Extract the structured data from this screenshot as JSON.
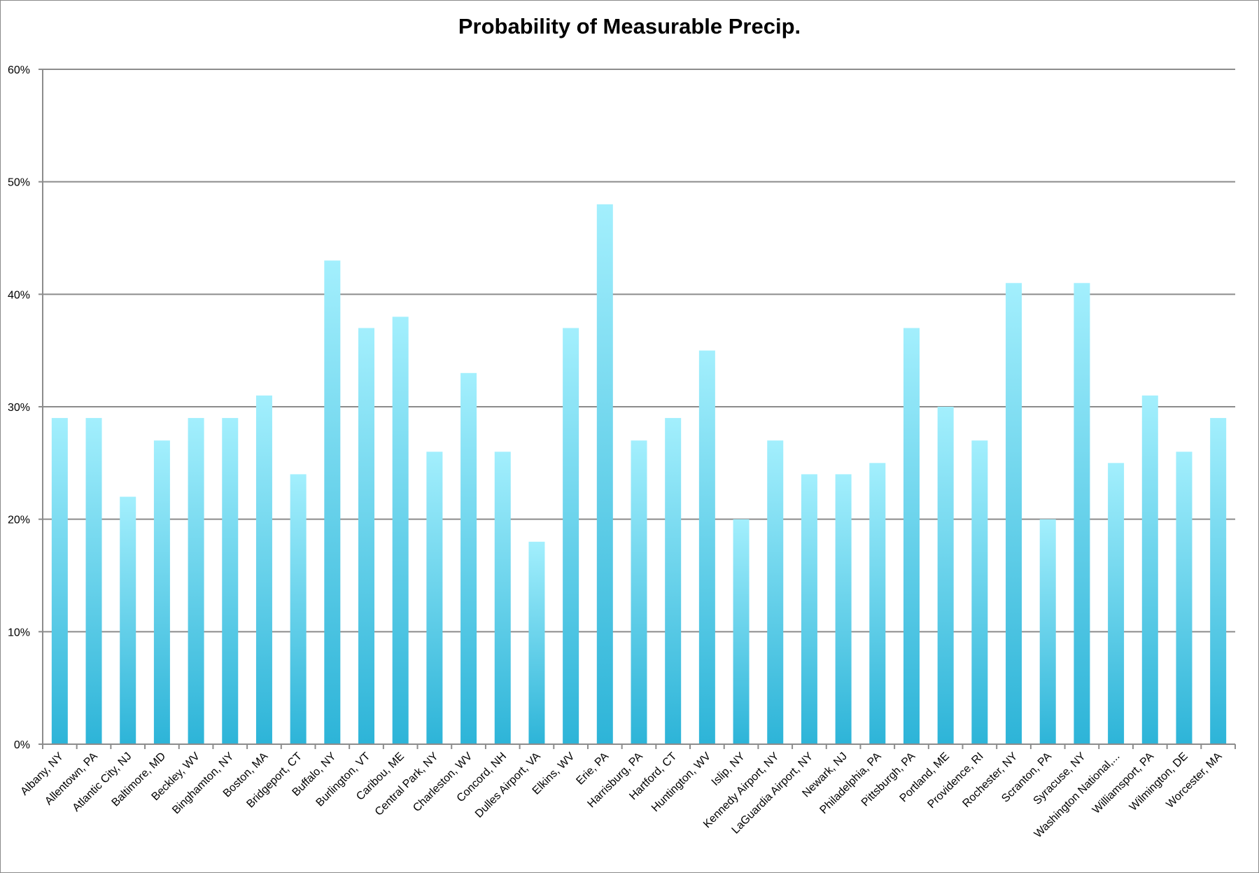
{
  "chart_data": {
    "type": "bar",
    "title": "Probability of Measurable Precip.",
    "xlabel": "",
    "ylabel": "",
    "ylim": [
      0,
      60
    ],
    "yticks": [
      "0%",
      "10%",
      "20%",
      "30%",
      "40%",
      "50%",
      "60%"
    ],
    "grid": true,
    "legend": "none",
    "categories": [
      "Albany, NY",
      "Allentown, PA",
      "Atlantic City, NJ",
      "Baltimore, MD",
      "Beckley, WV",
      "Binghamton, NY",
      "Boston, MA",
      "Bridgeport, CT",
      "Buffalo, NY",
      "Burlington, VT",
      "Caribou, ME",
      "Central Park, NY",
      "Charleston, WV",
      "Concord, NH",
      "Dulles Airport, VA",
      "Elkins, WV",
      "Erie, PA",
      "Harrisburg, PA",
      "Hartford, CT",
      "Huntington, WV",
      "Islip, NY",
      "Kennedy Airport, NY",
      "LaGuardia Airport, NY",
      "Newark, NJ",
      "Philadelphia, PA",
      "Pittsburgh, PA",
      "Portland, ME",
      "Providence, RI",
      "Rochester, NY",
      "Scranton, PA",
      "Syracuse, NY",
      "Washington National,...",
      "Williamsport, PA",
      "Wilmington, DE",
      "Worcester, MA"
    ],
    "values": [
      29,
      29,
      22,
      27,
      29,
      29,
      31,
      24,
      43,
      37,
      38,
      26,
      33,
      26,
      18,
      37,
      48,
      27,
      29,
      35,
      20,
      27,
      24,
      24,
      25,
      37,
      30,
      27,
      41,
      20,
      41,
      25,
      31,
      26,
      29
    ],
    "colors": {
      "bar_top": "#a3effd",
      "bar_bottom": "#2db4d8",
      "grid": "#8c8c8c"
    }
  }
}
